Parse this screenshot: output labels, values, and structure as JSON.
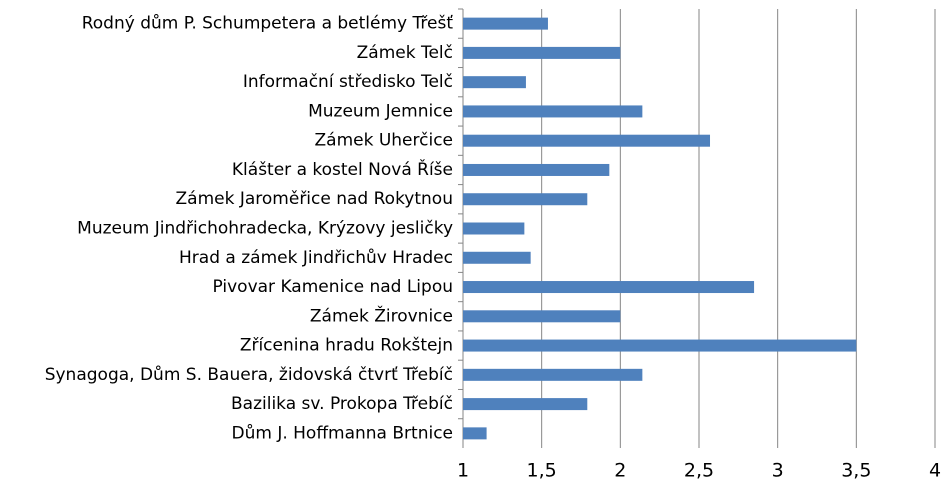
{
  "chart_data": {
    "type": "bar",
    "orientation": "horizontal",
    "categories": [
      "Rodný dům P. Schumpetera a betlémy Třešť",
      "Zámek Telč",
      "Informační středisko Telč",
      "Muzeum Jemnice",
      "Zámek Uherčice",
      "Klášter a kostel Nová Říše",
      "Zámek Jaroměřice nad Rokytnou",
      "Muzeum Jindřichohradecka, Krýzovy jesličky",
      "Hrad a zámek Jindřichův Hradec",
      "Pivovar Kamenice nad Lipou",
      "Zámek Žirovnice",
      "Zřícenina hradu Rokštejn",
      "Synagoga, Dům S. Bauera, židovská čtvrť Třebíč",
      "Bazilika sv. Prokopa Třebíč",
      "Dům J. Hoffmanna Brtnice"
    ],
    "values": [
      1.54,
      2.0,
      1.4,
      2.14,
      2.57,
      1.93,
      1.79,
      1.39,
      1.43,
      2.85,
      2.0,
      3.5,
      2.14,
      1.79,
      1.15
    ],
    "color": "#4f81bd",
    "xlim": [
      1,
      4
    ],
    "xticks": [
      1,
      {
        "value": 1.5,
        "label": "1,5"
      },
      2,
      {
        "value": 2.5,
        "label": "2,5"
      },
      3,
      {
        "value": 3.5,
        "label": "3,5"
      },
      4
    ],
    "grid": true
  }
}
